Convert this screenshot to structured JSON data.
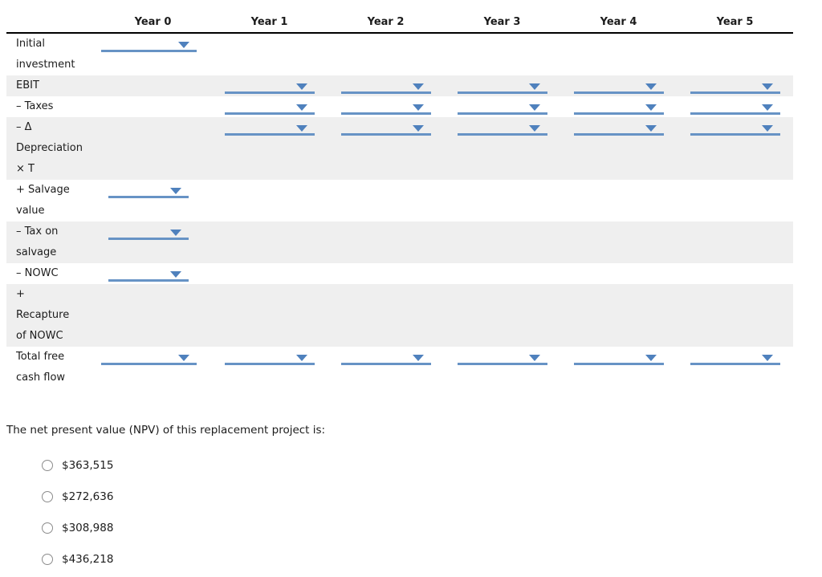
{
  "colors": {
    "dropdown_line": "#6793c5",
    "dropdown_caret": "#4f81bd",
    "shaded_row": "#efefef",
    "header_rule": "#000000",
    "text": "#1c1c1c",
    "radio_border": "#8b8b8b"
  },
  "table": {
    "columns": [
      "Year 0",
      "Year 1",
      "Year 2",
      "Year 3",
      "Year 4",
      "Year 5"
    ],
    "rows": [
      {
        "label_lines": [
          "Initial",
          "investment"
        ],
        "shaded": false,
        "dropdown_cols": [
          0
        ],
        "y0_style": "wide"
      },
      {
        "label_lines": [
          "EBIT"
        ],
        "shaded": true,
        "dropdown_cols": [
          1,
          2,
          3,
          4,
          5
        ],
        "y0_style": ""
      },
      {
        "label_lines": [
          "– Taxes"
        ],
        "shaded": false,
        "dropdown_cols": [
          1,
          2,
          3,
          4,
          5
        ],
        "y0_style": ""
      },
      {
        "label_lines": [
          "– Δ",
          "Depreciation",
          "× T"
        ],
        "shaded": true,
        "dropdown_cols": [
          1,
          2,
          3,
          4,
          5
        ],
        "y0_style": ""
      },
      {
        "label_lines": [
          "+ Salvage",
          "value"
        ],
        "shaded": false,
        "dropdown_cols": [
          0
        ],
        "y0_style": "narrow"
      },
      {
        "label_lines": [
          "– Tax on",
          "salvage"
        ],
        "shaded": true,
        "dropdown_cols": [
          0
        ],
        "y0_style": "narrow"
      },
      {
        "label_lines": [
          "– NOWC"
        ],
        "shaded": false,
        "dropdown_cols": [
          0
        ],
        "y0_style": "narrow"
      },
      {
        "label_lines": [
          "+",
          "Recapture",
          "of NOWC"
        ],
        "shaded": true,
        "dropdown_cols": [],
        "y0_style": ""
      },
      {
        "label_lines": [
          "Total free",
          "cash flow"
        ],
        "shaded": false,
        "dropdown_cols": [
          0,
          1,
          2,
          3,
          4,
          5
        ],
        "y0_style": "wide"
      }
    ],
    "dropdown_value": ""
  },
  "question": {
    "text": "The net present value (NPV) of this replacement project is:"
  },
  "options": [
    {
      "label": "$363,515",
      "selected": false
    },
    {
      "label": "$272,636",
      "selected": false
    },
    {
      "label": "$308,988",
      "selected": false
    },
    {
      "label": "$436,218",
      "selected": false
    }
  ]
}
